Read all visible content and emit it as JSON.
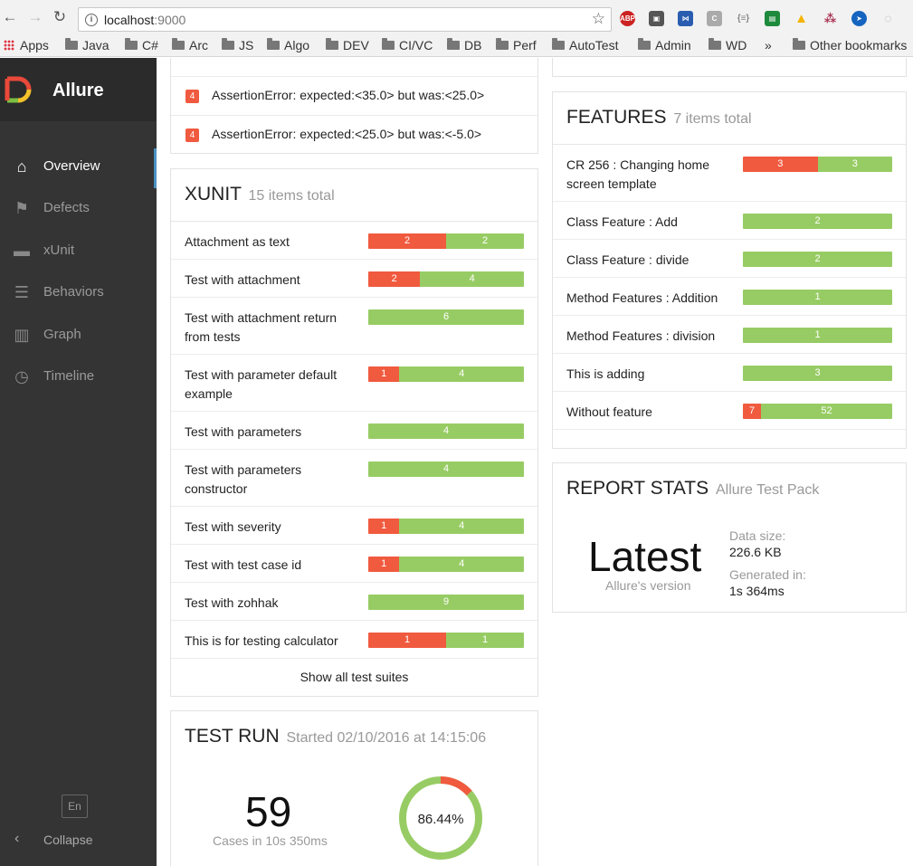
{
  "browser": {
    "url_host": "localhost",
    "url_port": ":9000",
    "bookmarks": [
      "Apps",
      "Java",
      "C#",
      "Arc",
      "JS",
      "Algo",
      "DEV",
      "CI/VC",
      "DB",
      "Perf",
      "AutoTest",
      "Admin",
      "WD"
    ],
    "more": "»",
    "other": "Other bookmarks"
  },
  "sidebar": {
    "title": "Allure",
    "items": [
      {
        "label": "Overview",
        "icon": "home-icon"
      },
      {
        "label": "Defects",
        "icon": "flag-icon"
      },
      {
        "label": "xUnit",
        "icon": "briefcase-icon"
      },
      {
        "label": "Behaviors",
        "icon": "list-icon"
      },
      {
        "label": "Graph",
        "icon": "bar-chart-icon"
      },
      {
        "label": "Timeline",
        "icon": "clock-icon"
      }
    ],
    "lang": "En",
    "collapse": "Collapse"
  },
  "defects": {
    "rows": [
      {
        "count": "4",
        "text": "AssertionError: expected:<35.0> but was:<25.0>"
      },
      {
        "count": "4",
        "text": "AssertionError: expected:<25.0> but was:<-5.0>"
      }
    ]
  },
  "xunit": {
    "title": "XUNIT",
    "subtitle": "15 items total",
    "show_all": "Show all test suites",
    "rows": [
      {
        "name": "Attachment as text",
        "failed": 2,
        "passed": 2
      },
      {
        "name": "Test with attachment",
        "failed": 2,
        "passed": 4
      },
      {
        "name": "Test with attachment return from tests",
        "failed": 0,
        "passed": 6
      },
      {
        "name": "Test with parameter default example",
        "failed": 1,
        "passed": 4
      },
      {
        "name": "Test with parameters",
        "failed": 0,
        "passed": 4
      },
      {
        "name": "Test with parameters constructor",
        "failed": 0,
        "passed": 4
      },
      {
        "name": "Test with severity",
        "failed": 1,
        "passed": 4
      },
      {
        "name": "Test with test case id",
        "failed": 1,
        "passed": 4
      },
      {
        "name": "Test with zohhak",
        "failed": 0,
        "passed": 9
      },
      {
        "name": "This is for testing calculator",
        "failed": 1,
        "passed": 1
      }
    ]
  },
  "features": {
    "title": "FEATURES",
    "subtitle": "7 items total",
    "rows": [
      {
        "name": "CR 256 : Changing home screen template",
        "failed": 3,
        "passed": 3
      },
      {
        "name": "Class Feature : Add",
        "failed": 0,
        "passed": 2
      },
      {
        "name": "Class Feature : divide",
        "failed": 0,
        "passed": 2
      },
      {
        "name": "Method Features : Addition",
        "failed": 0,
        "passed": 1
      },
      {
        "name": "Method Features : division",
        "failed": 0,
        "passed": 1
      },
      {
        "name": "This is adding",
        "failed": 0,
        "passed": 3
      },
      {
        "name": "Without feature",
        "failed": 7,
        "passed": 52
      }
    ]
  },
  "report_stats": {
    "title": "REPORT STATS",
    "subtitle": "Allure Test Pack",
    "version": "Latest",
    "version_caption": "Allure's version",
    "data_size_label": "Data size:",
    "data_size": "226.6 KB",
    "generated_label": "Generated in:",
    "generated": "1s 364ms"
  },
  "test_run": {
    "title": "TEST RUN",
    "subtitle": "Started 02/10/2016 at 14:15:06",
    "cases": "59",
    "cases_caption": "Cases in 10s 350ms",
    "percent": "86.44%",
    "passed_fraction": 0.8644
  },
  "colors": {
    "failed": "#f05a3f",
    "passed": "#97cc64",
    "sidebar": "#343434",
    "active": "#4a90c2"
  }
}
